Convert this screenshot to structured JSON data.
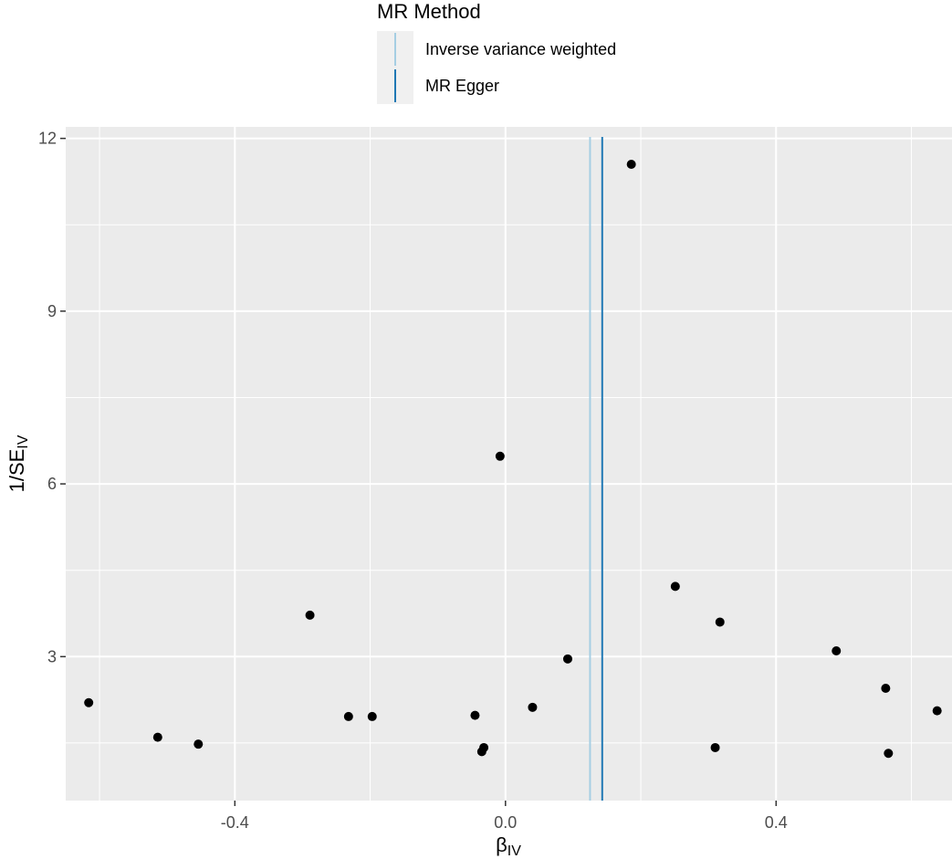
{
  "chart_data": {
    "type": "scatter",
    "xlabel": {
      "main": "β",
      "sub": "IV"
    },
    "ylabel": {
      "main": "1/SE",
      "sub": "IV"
    },
    "xlim": [
      -0.65,
      0.66
    ],
    "ylim": [
      0.5,
      12.2
    ],
    "x_ticks": [
      -0.4,
      0.0,
      0.4
    ],
    "x_tick_labels": [
      "-0.4",
      "0.0",
      "0.4"
    ],
    "y_ticks": [
      3,
      6,
      9,
      12
    ],
    "y_tick_labels": [
      "3",
      "6",
      "9",
      "12"
    ],
    "grid": true,
    "legend": {
      "title": "MR Method",
      "placement": "top",
      "entries": [
        {
          "label": "Inverse variance weighted",
          "color": "#a6cee3"
        },
        {
          "label": "MR Egger",
          "color": "#1f78b4"
        }
      ]
    },
    "vlines": [
      {
        "method": "Inverse variance weighted",
        "x": 0.125,
        "color": "#a6cee3"
      },
      {
        "method": "MR Egger",
        "x": 0.143,
        "color": "#1f78b4"
      }
    ],
    "points": [
      {
        "x": -0.616,
        "y": 2.2
      },
      {
        "x": -0.514,
        "y": 1.6
      },
      {
        "x": -0.454,
        "y": 1.48
      },
      {
        "x": -0.289,
        "y": 3.72
      },
      {
        "x": -0.232,
        "y": 1.96
      },
      {
        "x": -0.197,
        "y": 1.96
      },
      {
        "x": -0.045,
        "y": 1.98
      },
      {
        "x": -0.035,
        "y": 1.35
      },
      {
        "x": -0.032,
        "y": 1.42
      },
      {
        "x": -0.008,
        "y": 6.48
      },
      {
        "x": 0.04,
        "y": 2.12
      },
      {
        "x": 0.092,
        "y": 2.96
      },
      {
        "x": 0.186,
        "y": 11.55
      },
      {
        "x": 0.251,
        "y": 4.22
      },
      {
        "x": 0.31,
        "y": 1.42
      },
      {
        "x": 0.317,
        "y": 3.6
      },
      {
        "x": 0.489,
        "y": 3.1
      },
      {
        "x": 0.562,
        "y": 2.45
      },
      {
        "x": 0.566,
        "y": 1.32
      },
      {
        "x": 0.638,
        "y": 2.06
      }
    ]
  }
}
